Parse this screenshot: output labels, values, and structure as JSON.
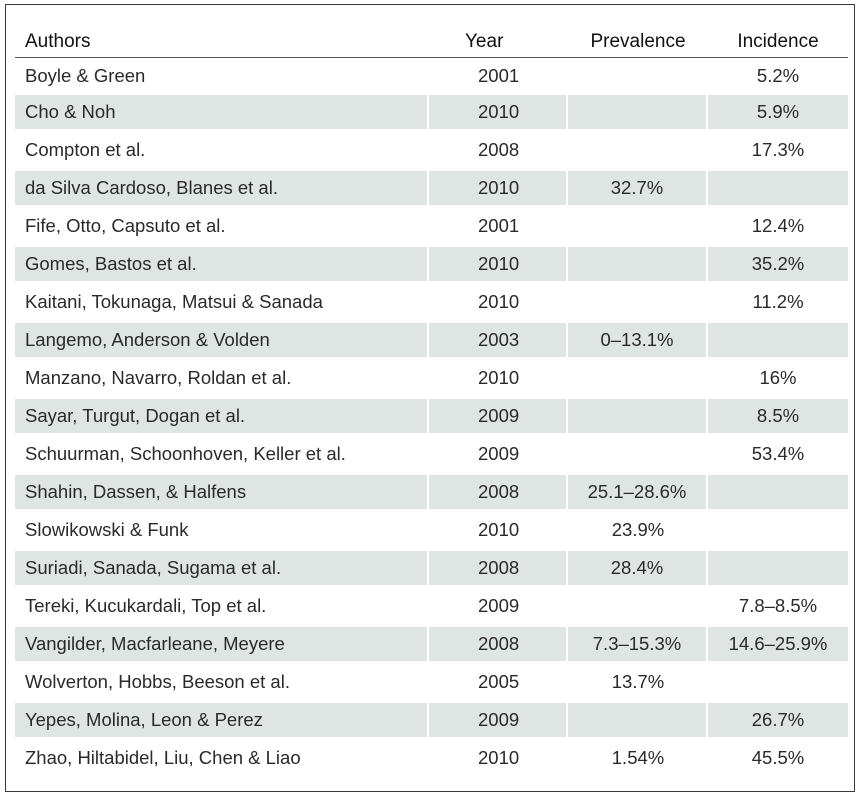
{
  "table": {
    "headers": {
      "authors": "Authors",
      "year": "Year",
      "prevalence": "Prevalence",
      "incidence": "Incidence"
    },
    "shade_color": "#dfe5e3",
    "rows": [
      {
        "authors": "Boyle & Green",
        "year": "2001",
        "prevalence": "",
        "incidence": "5.2%"
      },
      {
        "authors": "Cho & Noh",
        "year": "2010",
        "prevalence": "",
        "incidence": "5.9%"
      },
      {
        "authors": "Compton et al.",
        "year": "2008",
        "prevalence": "",
        "incidence": "17.3%"
      },
      {
        "authors": "da Silva Cardoso, Blanes et al.",
        "year": "2010",
        "prevalence": "32.7%",
        "incidence": ""
      },
      {
        "authors": "Fife, Otto, Capsuto et al.",
        "year": "2001",
        "prevalence": "",
        "incidence": "12.4%"
      },
      {
        "authors": "Gomes, Bastos et al.",
        "year": "2010",
        "prevalence": "",
        "incidence": "35.2%"
      },
      {
        "authors": "Kaitani, Tokunaga, Matsui & Sanada",
        "year": "2010",
        "prevalence": "",
        "incidence": "11.2%"
      },
      {
        "authors": "Langemo, Anderson & Volden",
        "year": "2003",
        "prevalence": "0–13.1%",
        "incidence": ""
      },
      {
        "authors": "Manzano, Navarro, Roldan et al.",
        "year": "2010",
        "prevalence": "",
        "incidence": "16%"
      },
      {
        "authors": "Sayar, Turgut, Dogan et al.",
        "year": "2009",
        "prevalence": "",
        "incidence": "8.5%"
      },
      {
        "authors": "Schuurman, Schoonhoven, Keller et al.",
        "year": "2009",
        "prevalence": "",
        "incidence": "53.4%"
      },
      {
        "authors": "Shahin, Dassen, & Halfens",
        "year": "2008",
        "prevalence": "25.1–28.6%",
        "incidence": ""
      },
      {
        "authors": "Slowikowski & Funk",
        "year": "2010",
        "prevalence": "23.9%",
        "incidence": ""
      },
      {
        "authors": "Suriadi, Sanada, Sugama et al.",
        "year": "2008",
        "prevalence": "28.4%",
        "incidence": ""
      },
      {
        "authors": "Tereki, Kucukardali, Top et al.",
        "year": "2009",
        "prevalence": "",
        "incidence": "7.8–8.5%"
      },
      {
        "authors": "Vangilder, Macfarleane, Meyere",
        "year": "2008",
        "prevalence": "7.3–15.3%",
        "incidence": "14.6–25.9%"
      },
      {
        "authors": "Wolverton, Hobbs, Beeson et al.",
        "year": "2005",
        "prevalence": "13.7%",
        "incidence": ""
      },
      {
        "authors": "Yepes, Molina, Leon & Perez",
        "year": "2009",
        "prevalence": "",
        "incidence": "26.7%"
      },
      {
        "authors": "Zhao, Hiltabidel, Liu, Chen & Liao",
        "year": "2010",
        "prevalence": "1.54%",
        "incidence": "45.5%"
      }
    ]
  }
}
